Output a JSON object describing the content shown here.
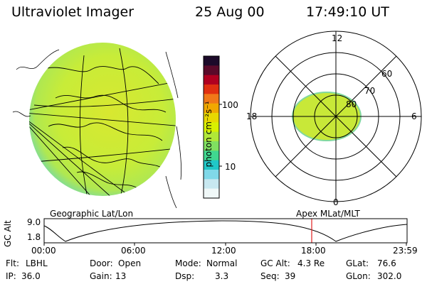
{
  "header": {
    "instrument": "Ultraviolet Imager",
    "date": "25 Aug 00",
    "time": "17:49:10 UT"
  },
  "panels": {
    "left_caption": "Geographic Lat/Lon",
    "right_caption": "Apex MLat/MLT"
  },
  "colorbar": {
    "units_label": "photon cm⁻²s⁻¹",
    "tick_labels": [
      "100",
      "10"
    ],
    "colors": [
      "#1c0a2a",
      "#5a0a2a",
      "#b00020",
      "#e03010",
      "#f07818",
      "#f0a800",
      "#e8d800",
      "#d8f000",
      "#b0e838",
      "#80e060",
      "#40d890",
      "#20c8c8",
      "#80d8e8",
      "#c8e8f0",
      "#f0f8f8"
    ]
  },
  "polar_plot": {
    "mlt_labels": {
      "top": "12",
      "left": "18",
      "right": "6",
      "bottom": "0"
    },
    "mlat_labels": [
      "60",
      "70",
      "80"
    ]
  },
  "altitude_plot": {
    "ylabel": "GC Alt",
    "y_ticks": [
      "9.0",
      "1.8"
    ],
    "x_ticks": [
      "00:00",
      "06:00",
      "12:00",
      "18:00",
      "23:59"
    ],
    "current_time_marker_color": "#e02020"
  },
  "info": {
    "row1": [
      {
        "label": "Flt:",
        "value": "LBHL"
      },
      {
        "label": "Door:",
        "value": "Open"
      },
      {
        "label": "Mode:",
        "value": "Normal"
      },
      {
        "label": "GC Alt:",
        "value": "4.3 Re"
      },
      {
        "label": "GLat:",
        "value": "76.6"
      }
    ],
    "row2": [
      {
        "label": "IP:",
        "value": "36.0"
      },
      {
        "label": "Gain:",
        "value": "13"
      },
      {
        "label": "Dsp:",
        "value": "3.3"
      },
      {
        "label": "Seq:",
        "value": "39"
      },
      {
        "label": "GLon:",
        "value": "302.0"
      }
    ]
  }
}
